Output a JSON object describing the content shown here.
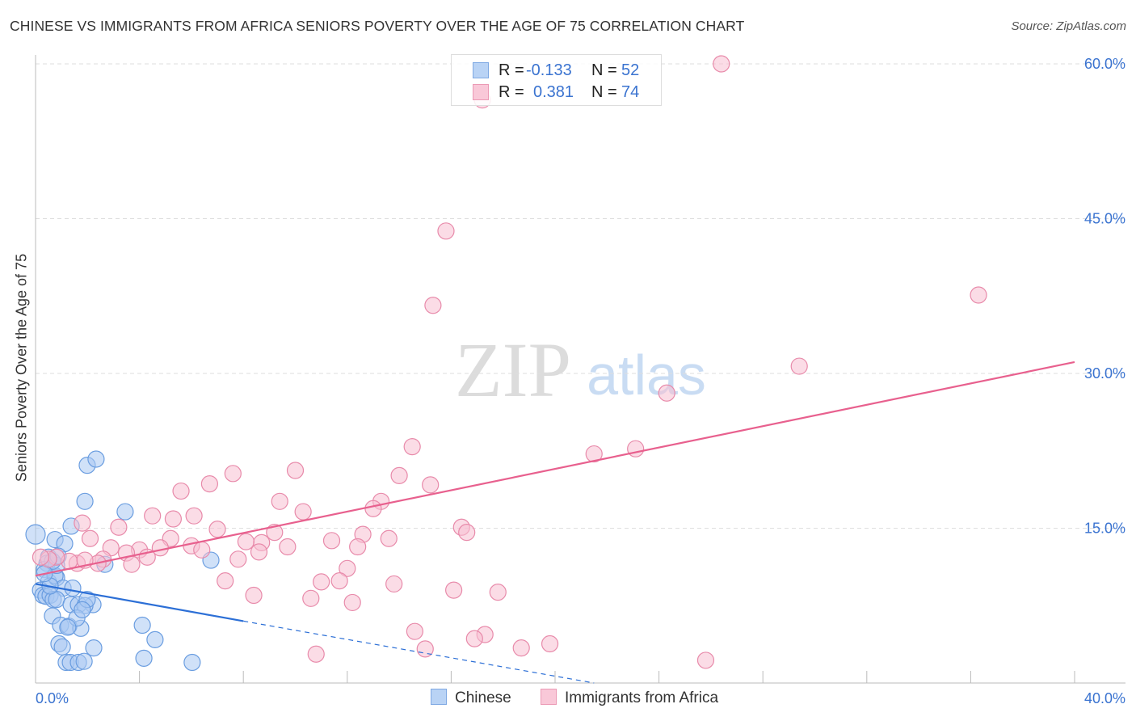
{
  "title": "CHINESE VS IMMIGRANTS FROM AFRICA SENIORS POVERTY OVER THE AGE OF 75 CORRELATION CHART",
  "source": "Source: ZipAtlas.com",
  "watermark": {
    "zip": "ZIP",
    "atlas": "atlas"
  },
  "colors": {
    "blue": "#6a9de0",
    "blue_fill": "#a9c8f2",
    "pink": "#e88aaa",
    "pink_fill": "#f7bfd2",
    "blue_line": "#2c6fd6",
    "pink_line": "#e8608e"
  },
  "legend": {
    "rows": [
      {
        "r_label": "R =",
        "r_value": "-0.133",
        "n_label": "N =",
        "n_value": "52"
      },
      {
        "r_label": "R =",
        "r_value": "0.381",
        "n_label": "N =",
        "n_value": "74"
      }
    ]
  },
  "chart_data": {
    "type": "scatter",
    "title": "CHINESE VS IMMIGRANTS FROM AFRICA SENIORS POVERTY OVER THE AGE OF 75 CORRELATION CHART",
    "xlabel": "",
    "ylabel": "Seniors Poverty Over the Age of 75",
    "xlim": [
      0,
      40
    ],
    "ylim": [
      0,
      62
    ],
    "x_tick_labels": [
      "0.0%",
      "40.0%"
    ],
    "x_ticks": [
      0,
      4,
      8,
      12,
      16,
      20,
      24,
      28,
      32,
      36,
      40
    ],
    "y_ticks": [
      15,
      30,
      45,
      60
    ],
    "y_tick_labels": [
      "15.0%",
      "30.0%",
      "45.0%",
      "60.0%"
    ],
    "grid": true,
    "legend_placement": "bottom",
    "series": [
      {
        "name": "Chinese",
        "r": -0.133,
        "n": 52,
        "trend": {
          "x0": 0,
          "y0": 9.6,
          "x1": 8,
          "y1": 6.0,
          "dashed_to_x": 21.5,
          "dashed_to_y": 0
        },
        "points": [
          [
            0.0,
            14.4
          ],
          [
            0.75,
            13.9
          ],
          [
            1.12,
            13.5
          ],
          [
            1.37,
            15.2
          ],
          [
            1.9,
            17.6
          ],
          [
            1.99,
            21.1
          ],
          [
            2.33,
            21.7
          ],
          [
            3.45,
            16.6
          ],
          [
            6.75,
            11.9
          ],
          [
            2.67,
            11.5
          ],
          [
            0.5,
            12.2
          ],
          [
            0.44,
            11.6
          ],
          [
            0.34,
            11.0
          ],
          [
            0.5,
            9.8
          ],
          [
            0.81,
            10.2
          ],
          [
            0.75,
            10.4
          ],
          [
            1.06,
            9.2
          ],
          [
            0.19,
            9.0
          ],
          [
            0.28,
            8.5
          ],
          [
            0.4,
            8.4
          ],
          [
            0.56,
            8.5
          ],
          [
            0.68,
            8.1
          ],
          [
            0.81,
            8.1
          ],
          [
            1.37,
            7.6
          ],
          [
            1.65,
            7.6
          ],
          [
            2.21,
            7.6
          ],
          [
            1.9,
            7.5
          ],
          [
            1.99,
            8.1
          ],
          [
            0.65,
            6.5
          ],
          [
            0.96,
            5.6
          ],
          [
            1.28,
            5.5
          ],
          [
            1.74,
            5.3
          ],
          [
            1.59,
            6.3
          ],
          [
            1.8,
            7.1
          ],
          [
            0.9,
            3.8
          ],
          [
            1.03,
            3.5
          ],
          [
            2.24,
            3.4
          ],
          [
            1.24,
            5.4
          ],
          [
            1.18,
            2.0
          ],
          [
            1.34,
            2.0
          ],
          [
            1.65,
            2.0
          ],
          [
            1.87,
            2.1
          ],
          [
            4.11,
            5.6
          ],
          [
            4.6,
            4.2
          ],
          [
            4.17,
            2.4
          ],
          [
            6.03,
            2.0
          ],
          [
            0.81,
            11.4
          ],
          [
            0.65,
            11.8
          ],
          [
            0.87,
            12.3
          ],
          [
            1.43,
            9.2
          ],
          [
            0.56,
            9.4
          ],
          [
            0.34,
            10.6
          ]
        ]
      },
      {
        "name": "Immigrants from Africa",
        "r": 0.381,
        "n": 74,
        "trend": {
          "x0": 0,
          "y0": 10.4,
          "x1": 40,
          "y1": 31.1
        },
        "points": [
          [
            26.4,
            60.0
          ],
          [
            17.2,
            56.5
          ],
          [
            15.8,
            43.8
          ],
          [
            15.3,
            36.6
          ],
          [
            36.3,
            37.6
          ],
          [
            29.4,
            30.7
          ],
          [
            24.3,
            28.1
          ],
          [
            14.5,
            22.9
          ],
          [
            21.5,
            22.2
          ],
          [
            23.1,
            22.7
          ],
          [
            10.0,
            20.6
          ],
          [
            7.6,
            20.3
          ],
          [
            6.7,
            19.3
          ],
          [
            5.6,
            18.6
          ],
          [
            14.0,
            20.1
          ],
          [
            15.2,
            19.2
          ],
          [
            9.4,
            17.6
          ],
          [
            13.3,
            17.6
          ],
          [
            13.0,
            16.9
          ],
          [
            10.3,
            16.6
          ],
          [
            4.5,
            16.2
          ],
          [
            6.1,
            16.2
          ],
          [
            5.3,
            15.9
          ],
          [
            1.8,
            15.5
          ],
          [
            3.2,
            15.1
          ],
          [
            7.0,
            14.9
          ],
          [
            2.1,
            14.0
          ],
          [
            5.2,
            14.0
          ],
          [
            6.0,
            13.3
          ],
          [
            9.2,
            14.6
          ],
          [
            8.7,
            13.6
          ],
          [
            8.1,
            13.7
          ],
          [
            12.6,
            14.4
          ],
          [
            13.6,
            14.0
          ],
          [
            11.4,
            13.8
          ],
          [
            12.4,
            13.2
          ],
          [
            16.4,
            15.1
          ],
          [
            16.6,
            14.6
          ],
          [
            2.9,
            13.1
          ],
          [
            4.0,
            12.9
          ],
          [
            4.8,
            13.1
          ],
          [
            3.5,
            12.6
          ],
          [
            4.3,
            12.2
          ],
          [
            6.4,
            12.9
          ],
          [
            8.6,
            12.7
          ],
          [
            9.7,
            13.2
          ],
          [
            7.8,
            12.0
          ],
          [
            2.6,
            12.0
          ],
          [
            2.4,
            11.6
          ],
          [
            1.6,
            11.6
          ],
          [
            1.3,
            11.8
          ],
          [
            0.8,
            12.2
          ],
          [
            0.5,
            12.0
          ],
          [
            0.2,
            12.2
          ],
          [
            3.7,
            11.5
          ],
          [
            12.0,
            11.1
          ],
          [
            7.3,
            9.9
          ],
          [
            11.0,
            9.8
          ],
          [
            11.7,
            9.9
          ],
          [
            13.8,
            9.6
          ],
          [
            16.1,
            9.0
          ],
          [
            17.8,
            8.8
          ],
          [
            8.4,
            8.5
          ],
          [
            10.6,
            8.2
          ],
          [
            12.2,
            7.8
          ],
          [
            14.6,
            5.0
          ],
          [
            17.3,
            4.7
          ],
          [
            16.9,
            4.3
          ],
          [
            19.8,
            3.8
          ],
          [
            18.7,
            3.4
          ],
          [
            15.0,
            3.3
          ],
          [
            10.8,
            2.8
          ],
          [
            25.8,
            2.2
          ],
          [
            1.9,
            11.9
          ]
        ]
      }
    ]
  }
}
